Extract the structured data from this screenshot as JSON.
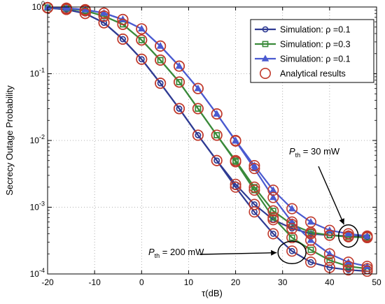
{
  "chart_data": {
    "type": "line",
    "xlabel": "τ(dB)",
    "ylabel": "Secrecy Outage Probability",
    "xlim": [
      -20,
      50
    ],
    "ylim": [
      0.0001,
      1
    ],
    "yscale": "log",
    "xticks": [
      "-20",
      "-10",
      "0",
      "10",
      "20",
      "30",
      "40",
      "50"
    ],
    "yticks": [
      {
        "base": "10",
        "exp": "-4"
      },
      {
        "base": "10",
        "exp": "-3"
      },
      {
        "base": "10",
        "exp": "-2"
      },
      {
        "base": "10",
        "exp": "-1"
      },
      {
        "base": "10",
        "exp": "0"
      }
    ],
    "grid": "dotted",
    "legend_position": "top-right",
    "x": [
      -20,
      -16,
      -12,
      -8,
      -4,
      0,
      4,
      8,
      12,
      16,
      20,
      24,
      28,
      32,
      36,
      40,
      44,
      48
    ],
    "series": [
      {
        "name": "Simulation: ρ =0.1",
        "color": "#2f3b93",
        "marker": "circle",
        "curves": [
          [
            0.97,
            0.92,
            0.8,
            0.58,
            0.33,
            0.165,
            0.072,
            0.03,
            0.012,
            0.005,
            0.0022,
            0.0011,
            0.00065,
            0.00048,
            0.0004,
            0.00038,
            0.00037,
            0.00036
          ],
          [
            0.97,
            0.92,
            0.8,
            0.58,
            0.33,
            0.165,
            0.072,
            0.03,
            0.012,
            0.005,
            0.002,
            0.00085,
            0.0004,
            0.00022,
            0.00015,
            0.000125,
            0.000115,
            0.00011
          ]
        ]
      },
      {
        "name": "Simulation: ρ =0.3",
        "color": "#3a8a3a",
        "marker": "square",
        "curves": [
          [
            0.98,
            0.95,
            0.88,
            0.73,
            0.55,
            0.32,
            0.16,
            0.075,
            0.03,
            0.012,
            0.005,
            0.002,
            0.00088,
            0.00055,
            0.00042,
            0.00038,
            0.00036,
            0.00035
          ],
          [
            0.98,
            0.95,
            0.88,
            0.73,
            0.55,
            0.32,
            0.16,
            0.075,
            0.03,
            0.012,
            0.0048,
            0.0018,
            0.0007,
            0.00035,
            0.00023,
            0.00016,
            0.00013,
            0.00012
          ]
        ]
      },
      {
        "name": "Simulation: ρ =0.1",
        "color": "#4a5ad0",
        "marker": "triangle",
        "curves": [
          [
            0.98,
            0.96,
            0.91,
            0.81,
            0.65,
            0.47,
            0.26,
            0.13,
            0.06,
            0.025,
            0.01,
            0.0042,
            0.0018,
            0.00095,
            0.0006,
            0.00045,
            0.0004,
            0.00037
          ],
          [
            0.98,
            0.96,
            0.91,
            0.81,
            0.65,
            0.47,
            0.26,
            0.13,
            0.06,
            0.025,
            0.0098,
            0.0038,
            0.0014,
            0.0006,
            0.00032,
            0.0002,
            0.00015,
            0.00013
          ]
        ]
      },
      {
        "name": "Analytical results",
        "color": "#c0392b",
        "marker": "open-circle"
      }
    ],
    "annotations": [
      {
        "italic": "P",
        "sub": "th",
        "text": " = 30 mW",
        "target_x": 44,
        "target_y": 0.00037
      },
      {
        "italic": "P",
        "sub": "th",
        "text": " = 200 mW",
        "target_x": 32,
        "target_y": 0.00021
      }
    ]
  }
}
